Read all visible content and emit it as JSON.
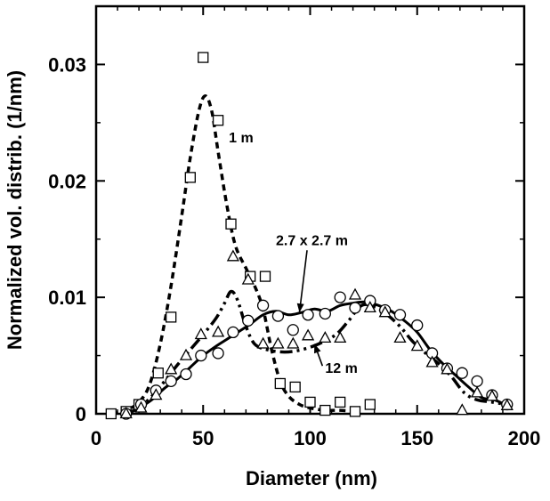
{
  "chart_data": {
    "type": "scatter",
    "xlabel": "Diameter (nm)",
    "ylabel": "Normalized vol. distrib. (1/nm)",
    "xlim": [
      0,
      200
    ],
    "ylim": [
      0,
      0.035
    ],
    "x_ticks": [
      0,
      50,
      100,
      150,
      200
    ],
    "x_tick_labels": [
      "0",
      "50",
      "100",
      "150",
      "200"
    ],
    "y_ticks": [
      0,
      0.01,
      0.02,
      0.03
    ],
    "y_tick_labels": [
      "0",
      "0.01",
      "0.02",
      "0.03"
    ],
    "grid": false,
    "annotations": [
      {
        "text": "1 m",
        "x": 62,
        "y": 0.0233,
        "target": "squares-1m"
      },
      {
        "text": "2.7 x 2.7 m",
        "x": 84,
        "y": 0.0145,
        "target": "circles-2.7m",
        "arrow_to": [
          95,
          0.0087
        ]
      },
      {
        "text": "12 m",
        "x": 107,
        "y": 0.0035,
        "target": "triangles-12m",
        "arrow_to": [
          102,
          0.006
        ]
      }
    ],
    "series": [
      {
        "id": "squares-1m",
        "marker": "square",
        "line": "short-dash",
        "points": [
          [
            7,
            0.0
          ],
          [
            14,
            0.0002
          ],
          [
            20,
            0.0008
          ],
          [
            29,
            0.0035
          ],
          [
            35,
            0.0083
          ],
          [
            44,
            0.0203
          ],
          [
            50,
            0.0306
          ],
          [
            57,
            0.0252
          ],
          [
            63,
            0.0163
          ],
          [
            72,
            0.0118
          ],
          [
            79,
            0.0118
          ],
          [
            86,
            0.0026
          ],
          [
            93,
            0.0023
          ],
          [
            100,
            0.001
          ],
          [
            107,
            0.0003
          ],
          [
            114,
            0.001
          ],
          [
            121,
            0.0002
          ],
          [
            128,
            0.0008
          ]
        ],
        "curve": [
          [
            7,
            0.0
          ],
          [
            14,
            0.0003
          ],
          [
            20,
            0.001
          ],
          [
            25,
            0.0025
          ],
          [
            30,
            0.006
          ],
          [
            35,
            0.011
          ],
          [
            40,
            0.017
          ],
          [
            44,
            0.022
          ],
          [
            48,
            0.026
          ],
          [
            51,
            0.0273
          ],
          [
            54,
            0.026
          ],
          [
            57,
            0.0225
          ],
          [
            61,
            0.018
          ],
          [
            65,
            0.0145
          ],
          [
            70,
            0.0125
          ],
          [
            74,
            0.011
          ],
          [
            78,
            0.009
          ],
          [
            82,
            0.0055
          ],
          [
            86,
            0.0028
          ],
          [
            90,
            0.0015
          ],
          [
            95,
            0.0008
          ],
          [
            100,
            0.0005
          ],
          [
            107,
            0.0003
          ],
          [
            114,
            0.0003
          ],
          [
            121,
            0.0002
          ]
        ]
      },
      {
        "id": "circles-2.7m",
        "marker": "circle",
        "line": "solid",
        "points": [
          [
            14,
            0.0
          ],
          [
            21,
            0.0008
          ],
          [
            28,
            0.002
          ],
          [
            35,
            0.0028
          ],
          [
            42,
            0.0034
          ],
          [
            49,
            0.005
          ],
          [
            57,
            0.0052
          ],
          [
            64,
            0.007
          ],
          [
            71,
            0.008
          ],
          [
            78,
            0.0093
          ],
          [
            85,
            0.0084
          ],
          [
            92,
            0.0072
          ],
          [
            99,
            0.0085
          ],
          [
            107,
            0.0086
          ],
          [
            114,
            0.01
          ],
          [
            121,
            0.0091
          ],
          [
            128,
            0.0097
          ],
          [
            135,
            0.0089
          ],
          [
            142,
            0.0085
          ],
          [
            150,
            0.0076
          ],
          [
            157,
            0.0052
          ],
          [
            164,
            0.0039
          ],
          [
            171,
            0.0035
          ],
          [
            178,
            0.0028
          ],
          [
            185,
            0.0016
          ],
          [
            192,
            0.0008
          ]
        ],
        "curve": [
          [
            14,
            0.0
          ],
          [
            20,
            0.0005
          ],
          [
            26,
            0.0012
          ],
          [
            32,
            0.0022
          ],
          [
            38,
            0.003
          ],
          [
            44,
            0.004
          ],
          [
            50,
            0.005
          ],
          [
            56,
            0.0058
          ],
          [
            62,
            0.0065
          ],
          [
            67,
            0.0071
          ],
          [
            72,
            0.0077
          ],
          [
            78,
            0.0085
          ],
          [
            84,
            0.0088
          ],
          [
            90,
            0.0085
          ],
          [
            96,
            0.0087
          ],
          [
            102,
            0.009
          ],
          [
            108,
            0.0088
          ],
          [
            114,
            0.0093
          ],
          [
            120,
            0.0095
          ],
          [
            126,
            0.0096
          ],
          [
            132,
            0.0093
          ],
          [
            138,
            0.0088
          ],
          [
            144,
            0.008
          ],
          [
            150,
            0.007
          ],
          [
            156,
            0.0055
          ],
          [
            162,
            0.0043
          ],
          [
            168,
            0.0033
          ],
          [
            174,
            0.0023
          ],
          [
            180,
            0.0014
          ],
          [
            186,
            0.0012
          ],
          [
            192,
            0.0007
          ]
        ]
      },
      {
        "id": "triangles-12m",
        "marker": "triangle",
        "line": "dash-dot-dot",
        "points": [
          [
            14,
            0.0
          ],
          [
            21,
            0.0005
          ],
          [
            28,
            0.0016
          ],
          [
            35,
            0.0038
          ],
          [
            42,
            0.005
          ],
          [
            49,
            0.0068
          ],
          [
            57,
            0.007
          ],
          [
            64,
            0.0135
          ],
          [
            71,
            0.0115
          ],
          [
            78,
            0.006
          ],
          [
            85,
            0.006
          ],
          [
            92,
            0.006
          ],
          [
            99,
            0.0067
          ],
          [
            107,
            0.0065
          ],
          [
            114,
            0.0065
          ],
          [
            121,
            0.0102
          ],
          [
            128,
            0.0091
          ],
          [
            135,
            0.0087
          ],
          [
            142,
            0.0065
          ],
          [
            150,
            0.0058
          ],
          [
            157,
            0.0044
          ],
          [
            164,
            0.0038
          ],
          [
            171,
            0.0003
          ],
          [
            178,
            0.0018
          ],
          [
            185,
            0.0015
          ],
          [
            192,
            0.0007
          ]
        ],
        "curve": [
          [
            14,
            0.0
          ],
          [
            20,
            0.0005
          ],
          [
            26,
            0.0015
          ],
          [
            32,
            0.0028
          ],
          [
            38,
            0.0042
          ],
          [
            44,
            0.0055
          ],
          [
            50,
            0.0068
          ],
          [
            56,
            0.0082
          ],
          [
            60,
            0.0095
          ],
          [
            63,
            0.0105
          ],
          [
            66,
            0.0098
          ],
          [
            70,
            0.0075
          ],
          [
            74,
            0.006
          ],
          [
            80,
            0.0055
          ],
          [
            88,
            0.0053
          ],
          [
            96,
            0.0055
          ],
          [
            104,
            0.006
          ],
          [
            112,
            0.0068
          ],
          [
            118,
            0.008
          ],
          [
            124,
            0.0093
          ],
          [
            130,
            0.0092
          ],
          [
            136,
            0.0085
          ],
          [
            142,
            0.0075
          ],
          [
            148,
            0.0062
          ],
          [
            154,
            0.0052
          ],
          [
            160,
            0.0043
          ],
          [
            166,
            0.0032
          ],
          [
            172,
            0.0018
          ],
          [
            178,
            0.0012
          ],
          [
            185,
            0.001
          ],
          [
            192,
            0.0008
          ]
        ]
      }
    ]
  }
}
